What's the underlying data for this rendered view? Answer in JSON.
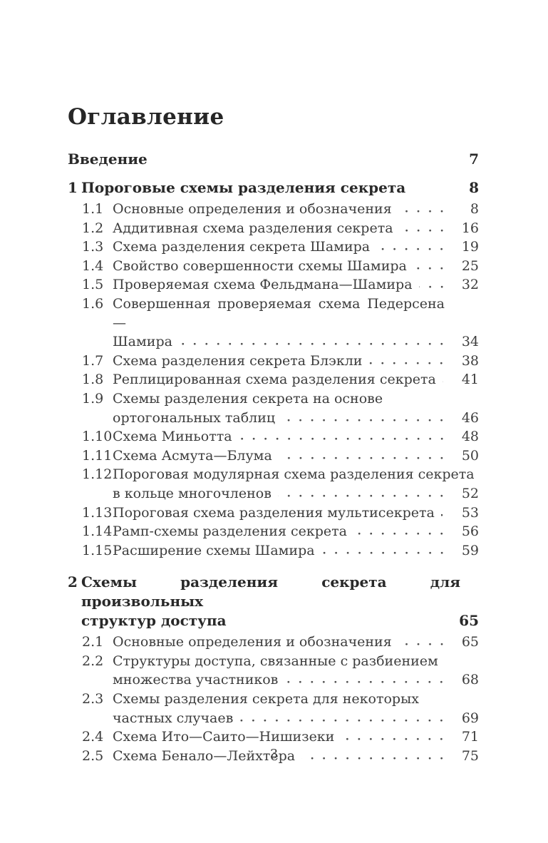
{
  "toc": {
    "title": "Оглавление",
    "entries": [
      {
        "kind": "intro",
        "label": "Введение",
        "page": "7"
      },
      {
        "kind": "chapter",
        "number": "1",
        "lines": [
          "Пороговые схемы разделения секрета"
        ],
        "page": "8"
      },
      {
        "kind": "section",
        "number": "1.1",
        "lines": [
          "Основные определения и обозначения"
        ],
        "page": "8"
      },
      {
        "kind": "section",
        "number": "1.2",
        "lines": [
          "Аддитивная схема разделения секрета"
        ],
        "page": "16"
      },
      {
        "kind": "section",
        "number": "1.3",
        "lines": [
          "Схема разделения секрета Шамира"
        ],
        "page": "19"
      },
      {
        "kind": "section",
        "number": "1.4",
        "lines": [
          "Свойство совершенности схемы Шамира"
        ],
        "page": "25"
      },
      {
        "kind": "section",
        "number": "1.5",
        "lines": [
          "Проверяемая схема Фельдмана—Шамира"
        ],
        "page": "32"
      },
      {
        "kind": "section",
        "number": "1.6",
        "lines": [
          "Совершенная проверяемая схема Педерсена—",
          "Шамира"
        ],
        "page": "34",
        "justify_first": true
      },
      {
        "kind": "section",
        "number": "1.7",
        "lines": [
          "Схема разделения секрета Блэкли"
        ],
        "page": "38"
      },
      {
        "kind": "section",
        "number": "1.8",
        "lines": [
          "Реплицированная схема разделения секрета"
        ],
        "page": "41"
      },
      {
        "kind": "section",
        "number": "1.9",
        "lines": [
          "Схемы разделения секрета на основе",
          "ортогональных таблиц"
        ],
        "page": "46"
      },
      {
        "kind": "section",
        "number": "1.10",
        "lines": [
          "Схема Миньотта"
        ],
        "page": "48"
      },
      {
        "kind": "section",
        "number": "1.11",
        "lines": [
          "Схема Асмута—Блума"
        ],
        "page": "50"
      },
      {
        "kind": "section",
        "number": "1.12",
        "lines": [
          "Пороговая модулярная схема разделения секрета",
          "в кольце многочленов"
        ],
        "page": "52"
      },
      {
        "kind": "section",
        "number": "1.13",
        "lines": [
          "Пороговая схема разделения мультисекрета"
        ],
        "page": "53"
      },
      {
        "kind": "section",
        "number": "1.14",
        "lines": [
          "Рамп-схемы разделения секрета"
        ],
        "page": "56"
      },
      {
        "kind": "section",
        "number": "1.15",
        "lines": [
          "Расширение схемы Шамира"
        ],
        "page": "59"
      },
      {
        "kind": "chapter",
        "number": "2",
        "lines": [
          "Схемы разделения секрета для произвольных",
          "структур доступа"
        ],
        "page": "65",
        "justify_first": true
      },
      {
        "kind": "section",
        "number": "2.1",
        "lines": [
          "Основные определения и обозначения"
        ],
        "page": "65"
      },
      {
        "kind": "section",
        "number": "2.2",
        "lines": [
          "Структуры доступа, связанные с разбиением",
          "множества участников"
        ],
        "page": "68"
      },
      {
        "kind": "section",
        "number": "2.3",
        "lines": [
          "Схемы разделения секрета для некоторых",
          "частных случаев"
        ],
        "page": "69"
      },
      {
        "kind": "section",
        "number": "2.4",
        "lines": [
          "Схема Ито—Саито—Нишизеки"
        ],
        "page": "71"
      },
      {
        "kind": "section",
        "number": "2.5",
        "lines": [
          "Схема Бенало—Лейхтера"
        ],
        "page": "75"
      }
    ]
  },
  "footer": {
    "page_number": "3"
  }
}
